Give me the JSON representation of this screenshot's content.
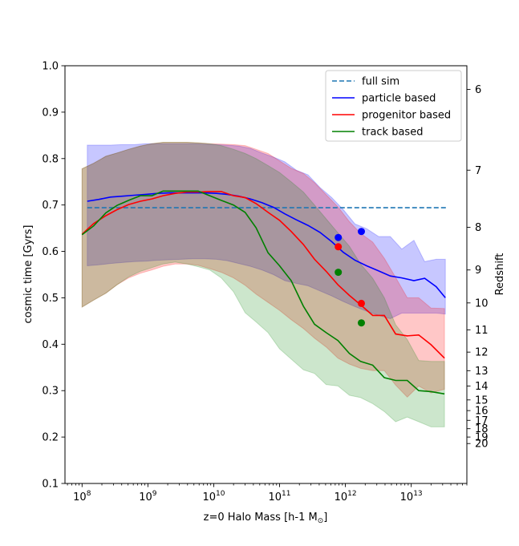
{
  "chart_data": {
    "type": "line",
    "title": "",
    "xlabel": "z=0 Halo Mass [h-1 M$_\\odot$]",
    "xlabel_main": "z=0 Halo Mass [h-1 M",
    "xlabel_sub": "⊙",
    "xlabel_end": "]",
    "ylabel": "cosmic time [Gyrs]",
    "y2label": "Redshift",
    "xscale": "log",
    "xlim": [
      55000000.0,
      70000000000000.0
    ],
    "ylim": [
      0.1,
      1.0
    ],
    "xticks": [
      100000000.0,
      1000000000.0,
      10000000000.0,
      100000000000.0,
      1000000000000.0,
      10000000000000.0
    ],
    "xtick_labels": [
      {
        "base": "10",
        "exp": "8"
      },
      {
        "base": "10",
        "exp": "9"
      },
      {
        "base": "10",
        "exp": "10"
      },
      {
        "base": "10",
        "exp": "11"
      },
      {
        "base": "10",
        "exp": "12"
      },
      {
        "base": "10",
        "exp": "13"
      }
    ],
    "yticks": [
      0.1,
      0.2,
      0.3,
      0.4,
      0.5,
      0.6,
      0.7,
      0.8,
      0.9,
      1.0
    ],
    "ytick_labels": [
      "0.1",
      "0.2",
      "0.3",
      "0.4",
      "0.5",
      "0.6",
      "0.7",
      "0.8",
      "0.9",
      "1.0"
    ],
    "redshift_ticks": [
      {
        "label": "6",
        "t": 0.949
      },
      {
        "label": "7",
        "t": 0.775
      },
      {
        "label": "8",
        "t": 0.652
      },
      {
        "label": "9",
        "t": 0.56
      },
      {
        "label": "10",
        "t": 0.489
      },
      {
        "label": "11",
        "t": 0.431
      },
      {
        "label": "12",
        "t": 0.383
      },
      {
        "label": "13",
        "t": 0.343
      },
      {
        "label": "14",
        "t": 0.31
      },
      {
        "label": "15",
        "t": 0.28
      },
      {
        "label": "16",
        "t": 0.257
      },
      {
        "label": "17",
        "t": 0.236
      },
      {
        "label": "18",
        "t": 0.218
      },
      {
        "label": "19",
        "t": 0.2
      },
      {
        "label": "20",
        "t": 0.186
      }
    ],
    "grid": false,
    "legend_position": "top-right",
    "series": [
      {
        "name": "full sim",
        "style": "dashed",
        "color": "#1f77b4",
        "x": [
          120000000.0,
          35000000000000.0
        ],
        "y": [
          0.694,
          0.694
        ]
      },
      {
        "name": "particle based",
        "style": "solid",
        "color": "#0000ff",
        "band_color": "#0000ff",
        "band_alpha": 0.22,
        "x": [
          120000000.0,
          180000000.0,
          270000000.0,
          410000000.0,
          620000000.0,
          930000000.0,
          1400000000.0,
          2100000000.0,
          3200000000.0,
          4800000000.0,
          7200000000.0,
          11000000000.0,
          16000000000.0,
          24000000000.0,
          36000000000.0,
          54000000000.0,
          81000000000.0,
          120000000000.0,
          180000000000.0,
          270000000000.0,
          410000000000.0,
          620000000000.0,
          930000000000.0,
          1400000000000.0,
          2100000000000.0,
          3200000000000.0,
          4800000000000.0,
          7200000000000.0,
          11000000000000.0,
          16000000000000.0,
          24000000000000.0,
          33000000000000.0
        ],
        "y": [
          0.708,
          0.712,
          0.717,
          0.719,
          0.721,
          0.723,
          0.725,
          0.726,
          0.726,
          0.726,
          0.726,
          0.725,
          0.723,
          0.719,
          0.713,
          0.705,
          0.695,
          0.681,
          0.668,
          0.656,
          0.641,
          0.621,
          0.598,
          0.581,
          0.569,
          0.558,
          0.547,
          0.543,
          0.537,
          0.542,
          0.524,
          0.5
        ],
        "upper": [
          0.829,
          0.829,
          0.829,
          0.83,
          0.83,
          0.832,
          0.832,
          0.832,
          0.832,
          0.832,
          0.831,
          0.83,
          0.829,
          0.827,
          0.822,
          0.812,
          0.803,
          0.793,
          0.775,
          0.765,
          0.738,
          0.716,
          0.69,
          0.659,
          0.649,
          0.632,
          0.632,
          0.605,
          0.624,
          0.578,
          0.583,
          0.583
        ],
        "lower": [
          0.569,
          0.571,
          0.574,
          0.576,
          0.578,
          0.579,
          0.581,
          0.582,
          0.583,
          0.584,
          0.584,
          0.583,
          0.58,
          0.574,
          0.568,
          0.56,
          0.55,
          0.537,
          0.531,
          0.526,
          0.515,
          0.504,
          0.492,
          0.481,
          0.471,
          0.462,
          0.455,
          0.467,
          0.467,
          0.467,
          0.467,
          0.465
        ]
      },
      {
        "name": "progenitor based",
        "style": "solid",
        "color": "#ff0000",
        "band_color": "#ff0000",
        "band_alpha": 0.22,
        "x": [
          100000000.0,
          150000000.0,
          230000000.0,
          340000000.0,
          510000000.0,
          770000000.0,
          1150000000.0,
          1700000000.0,
          2600000000.0,
          3900000000.0,
          5800000000.0,
          8700000000.0,
          13000000000.0,
          20000000000.0,
          30000000000.0,
          44000000000.0,
          67000000000.0,
          100000000000.0,
          150000000000.0,
          230000000000.0,
          340000000000.0,
          510000000000.0,
          770000000000.0,
          1150000000000.0,
          1700000000000.0,
          2600000000000.0,
          3900000000000.0,
          5800000000000.0,
          8700000000000.0,
          13000000000000.0,
          20000000000000.0,
          32000000000000.0
        ],
        "y": [
          0.637,
          0.66,
          0.677,
          0.69,
          0.701,
          0.708,
          0.713,
          0.72,
          0.725,
          0.728,
          0.728,
          0.729,
          0.729,
          0.72,
          0.716,
          0.703,
          0.684,
          0.667,
          0.643,
          0.615,
          0.583,
          0.557,
          0.528,
          0.505,
          0.485,
          0.462,
          0.462,
          0.422,
          0.418,
          0.42,
          0.399,
          0.37
        ],
        "upper": [
          0.778,
          0.79,
          0.805,
          0.812,
          0.82,
          0.827,
          0.832,
          0.835,
          0.835,
          0.835,
          0.834,
          0.832,
          0.831,
          0.83,
          0.828,
          0.82,
          0.811,
          0.795,
          0.779,
          0.768,
          0.748,
          0.722,
          0.696,
          0.664,
          0.639,
          0.62,
          0.585,
          0.544,
          0.5,
          0.5,
          0.478,
          0.477
        ],
        "lower": [
          0.48,
          0.495,
          0.51,
          0.528,
          0.543,
          0.553,
          0.56,
          0.568,
          0.573,
          0.573,
          0.57,
          0.563,
          0.555,
          0.543,
          0.527,
          0.508,
          0.49,
          0.473,
          0.453,
          0.434,
          0.413,
          0.394,
          0.37,
          0.357,
          0.348,
          0.343,
          0.343,
          0.312,
          0.286,
          0.31,
          0.295,
          0.303
        ]
      },
      {
        "name": "track based",
        "style": "solid",
        "color": "#008000",
        "band_color": "#008000",
        "band_alpha": 0.2,
        "x": [
          100000000.0,
          150000000.0,
          230000000.0,
          340000000.0,
          510000000.0,
          770000000.0,
          1150000000.0,
          1700000000.0,
          2600000000.0,
          3900000000.0,
          5800000000.0,
          8700000000.0,
          13000000000.0,
          20000000000.0,
          30000000000.0,
          44000000000.0,
          67000000000.0,
          100000000000.0,
          150000000000.0,
          230000000000.0,
          340000000000.0,
          510000000000.0,
          770000000000.0,
          1150000000000.0,
          1700000000000.0,
          2600000000000.0,
          3900000000000.0,
          5800000000000.0,
          8700000000000.0,
          13000000000000.0,
          20000000000000.0,
          32000000000000.0
        ],
        "y": [
          0.636,
          0.655,
          0.683,
          0.699,
          0.71,
          0.72,
          0.72,
          0.73,
          0.73,
          0.73,
          0.73,
          0.72,
          0.71,
          0.7,
          0.684,
          0.651,
          0.597,
          0.569,
          0.537,
          0.482,
          0.443,
          0.425,
          0.408,
          0.38,
          0.363,
          0.355,
          0.328,
          0.322,
          0.322,
          0.3,
          0.298,
          0.293
        ],
        "upper": [
          0.778,
          0.79,
          0.805,
          0.812,
          0.82,
          0.827,
          0.832,
          0.835,
          0.835,
          0.835,
          0.834,
          0.832,
          0.828,
          0.82,
          0.811,
          0.8,
          0.785,
          0.77,
          0.75,
          0.728,
          0.7,
          0.67,
          0.64,
          0.611,
          0.573,
          0.542,
          0.5,
          0.442,
          0.41,
          0.365,
          0.363,
          0.363
        ],
        "lower": [
          0.48,
          0.495,
          0.51,
          0.528,
          0.545,
          0.557,
          0.565,
          0.573,
          0.577,
          0.573,
          0.567,
          0.56,
          0.543,
          0.513,
          0.468,
          0.448,
          0.425,
          0.39,
          0.368,
          0.345,
          0.337,
          0.313,
          0.31,
          0.29,
          0.285,
          0.272,
          0.255,
          0.233,
          0.243,
          0.233,
          0.222,
          0.222
        ]
      }
    ],
    "markers": [
      {
        "series": "particle based",
        "color": "#0000ff",
        "points": [
          {
            "x": 780000000000.0,
            "y": 0.63
          },
          {
            "x": 1750000000000.0,
            "y": 0.643
          }
        ]
      },
      {
        "series": "progenitor based",
        "color": "#ff0000",
        "points": [
          {
            "x": 780000000000.0,
            "y": 0.61
          },
          {
            "x": 1750000000000.0,
            "y": 0.488
          }
        ]
      },
      {
        "series": "track based",
        "color": "#008000",
        "points": [
          {
            "x": 780000000000.0,
            "y": 0.555
          },
          {
            "x": 1750000000000.0,
            "y": 0.446
          }
        ]
      }
    ]
  }
}
